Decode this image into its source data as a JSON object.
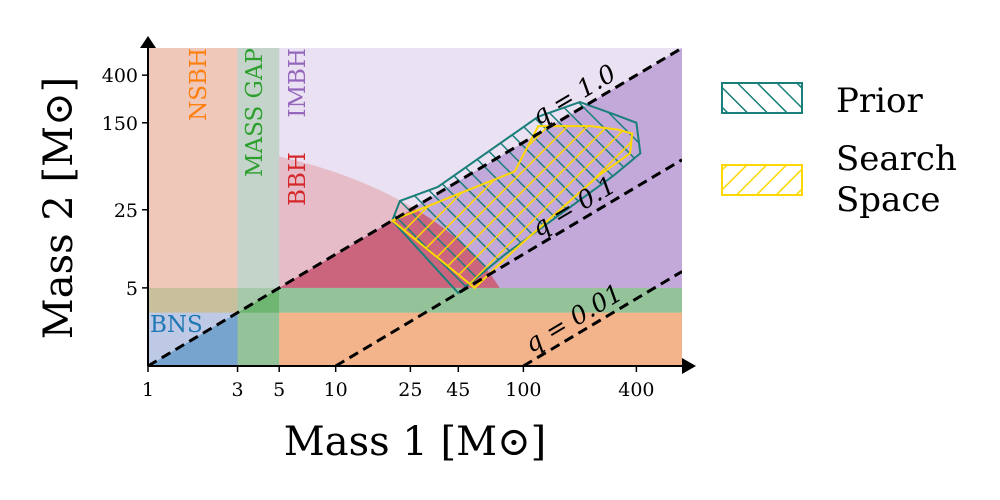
{
  "chart_data": {
    "type": "area",
    "xlabel": "Mass 1 [M⊙]",
    "ylabel": "Mass 2 [M⊙]",
    "x_scale": "log",
    "y_scale": "log",
    "xlim": [
      1,
      700
    ],
    "ylim": [
      1,
      700
    ],
    "x_ticks": [
      1,
      3,
      5,
      10,
      25,
      45,
      100,
      400
    ],
    "x_tick_labels": [
      "1",
      "3",
      "5",
      "10",
      "25",
      "45",
      "100",
      "400"
    ],
    "y_ticks": [
      5,
      25,
      150,
      400
    ],
    "y_tick_labels": [
      "5",
      "25",
      "150",
      "400"
    ],
    "regions": [
      {
        "label": "BNS",
        "color": "#1f77b4"
      },
      {
        "label": "NSBH",
        "color": "#ff7f0e"
      },
      {
        "label": "MASS GAP",
        "color": "#2ca02c"
      },
      {
        "label": "BBH",
        "color": "#d62728"
      },
      {
        "label": "IMBH",
        "color": "#9467bd"
      }
    ],
    "mass_ratio_lines": [
      {
        "label": "q = 1.0",
        "q": 1.0
      },
      {
        "label": "q = 0.1",
        "q": 0.1
      },
      {
        "label": "q = 0.01",
        "q": 0.01
      }
    ],
    "legend": [
      {
        "label": "Prior",
        "color": "#1a7f7a",
        "hatch": "\\\\"
      },
      {
        "label": "Search Space",
        "label_lines": [
          "Search",
          "Space"
        ],
        "color": "#ffd700",
        "hatch": "//"
      }
    ],
    "legend_position": "right",
    "prior_region": [
      [
        20,
        20
      ],
      [
        22,
        30
      ],
      [
        35,
        40
      ],
      [
        120,
        170
      ],
      [
        200,
        230
      ],
      [
        300,
        180
      ],
      [
        400,
        150
      ],
      [
        420,
        80
      ],
      [
        300,
        50
      ],
      [
        80,
        10
      ],
      [
        45,
        4.5
      ]
    ],
    "search_region": [
      [
        20,
        20
      ],
      [
        40,
        32
      ],
      [
        90,
        55
      ],
      [
        120,
        140
      ],
      [
        230,
        140
      ],
      [
        320,
        130
      ],
      [
        380,
        120
      ],
      [
        370,
        80
      ],
      [
        250,
        50
      ],
      [
        90,
        11
      ],
      [
        55,
        5
      ]
    ]
  }
}
